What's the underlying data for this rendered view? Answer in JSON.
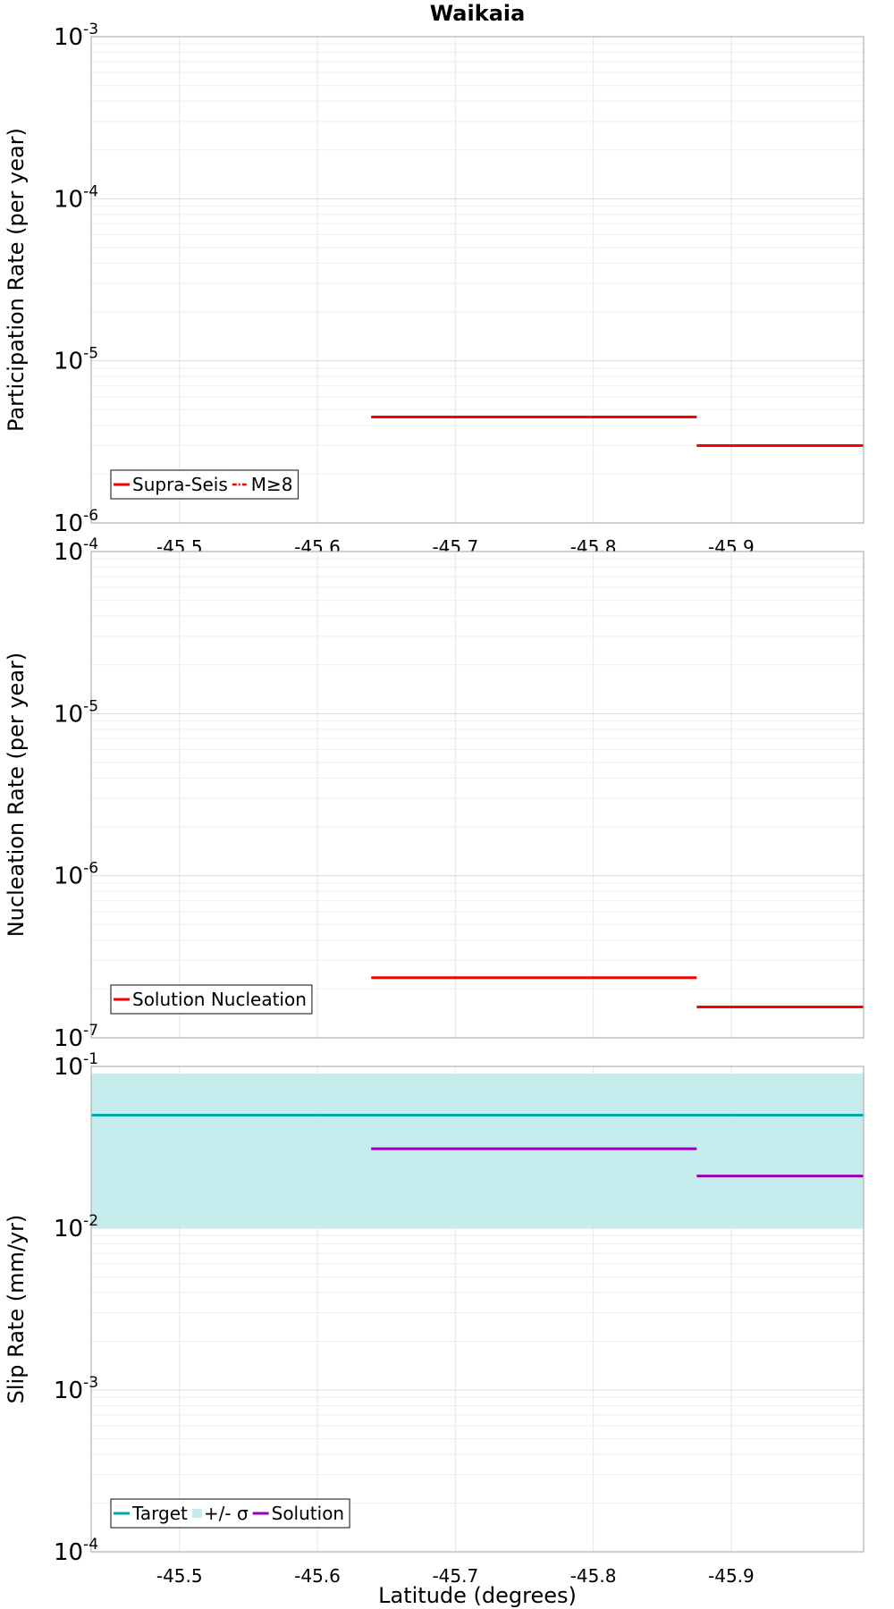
{
  "chart_data": [
    {
      "type": "line",
      "title": "Waikaia",
      "xlabel": "",
      "ylabel": "Participation Rate (per year)",
      "x_tick_labels": [
        "-45.5",
        "-45.6",
        "-45.7",
        "-45.8",
        "-45.9"
      ],
      "x_ticks": [
        -45.5,
        -45.6,
        -45.7,
        -45.8,
        -45.9
      ],
      "xlim": [
        -45.436,
        -45.996
      ],
      "yscale": "log",
      "ylim": [
        1e-06,
        0.001
      ],
      "y_tick_labels": [
        {
          "value": 1e-06,
          "base": "10",
          "exp": "-6"
        },
        {
          "value": 1e-05,
          "base": "10",
          "exp": "-5"
        },
        {
          "value": 0.0001,
          "base": "10",
          "exp": "-4"
        },
        {
          "value": 0.001,
          "base": "10",
          "exp": "-3"
        }
      ],
      "grid": true,
      "legend_position": "bottom-left",
      "legend": [
        {
          "label": "Supra-Seis",
          "style": "solid",
          "color": "#ff0000"
        },
        {
          "label": "M≥8",
          "style": "dashdot",
          "color": "#ff0000"
        }
      ],
      "series": [
        {
          "name": "Supra-Seis",
          "color": "#ff0000",
          "style": "solid",
          "segments": [
            {
              "x": [
                -45.639,
                -45.875
              ],
              "y": 4.5e-06
            },
            {
              "x": [
                -45.875,
                -45.996
              ],
              "y": 3e-06
            }
          ]
        },
        {
          "name": "M≥8",
          "color": "#ff0000",
          "style": "dashdot",
          "segments": [
            {
              "x": [
                -45.639,
                -45.875
              ],
              "y": 4.5e-06
            },
            {
              "x": [
                -45.875,
                -45.996
              ],
              "y": 3e-06
            }
          ]
        }
      ]
    },
    {
      "type": "line",
      "title": "",
      "xlabel": "",
      "ylabel": "Nucleation Rate (per year)",
      "x_tick_labels": [],
      "x_ticks": [
        -45.5,
        -45.6,
        -45.7,
        -45.8,
        -45.9
      ],
      "xlim": [
        -45.436,
        -45.996
      ],
      "yscale": "log",
      "ylim": [
        1e-07,
        0.0001
      ],
      "y_tick_labels": [
        {
          "value": 1e-07,
          "base": "10",
          "exp": "-7"
        },
        {
          "value": 1e-06,
          "base": "10",
          "exp": "-6"
        },
        {
          "value": 1e-05,
          "base": "10",
          "exp": "-5"
        },
        {
          "value": 0.0001,
          "base": "10",
          "exp": "-4"
        }
      ],
      "grid": true,
      "legend_position": "bottom-left",
      "legend": [
        {
          "label": "Solution Nucleation",
          "style": "solid",
          "color": "#ff0000"
        }
      ],
      "series": [
        {
          "name": "Solution Nucleation",
          "color": "#ff0000",
          "style": "solid",
          "segments": [
            {
              "x": [
                -45.639,
                -45.875
              ],
              "y": 2.35e-07
            },
            {
              "x": [
                -45.875,
                -45.996
              ],
              "y": 1.55e-07
            }
          ]
        }
      ]
    },
    {
      "type": "line",
      "title": "",
      "xlabel": "Latitude (degrees)",
      "ylabel": "Slip Rate (mm/yr)",
      "x_tick_labels": [
        "-45.5",
        "-45.6",
        "-45.7",
        "-45.8",
        "-45.9"
      ],
      "x_ticks": [
        -45.5,
        -45.6,
        -45.7,
        -45.8,
        -45.9
      ],
      "xlim": [
        -45.436,
        -45.996
      ],
      "yscale": "log",
      "ylim": [
        0.0001,
        0.1
      ],
      "y_tick_labels": [
        {
          "value": 0.0001,
          "base": "10",
          "exp": "-4"
        },
        {
          "value": 0.001,
          "base": "10",
          "exp": "-3"
        },
        {
          "value": 0.01,
          "base": "10",
          "exp": "-2"
        },
        {
          "value": 0.1,
          "base": "10",
          "exp": "-1"
        }
      ],
      "grid": true,
      "legend_position": "bottom-left",
      "legend": [
        {
          "label": "Target",
          "style": "solid",
          "color": "#00aaaa"
        },
        {
          "label": "+/- σ",
          "style": "band",
          "color": "#c2ecec"
        },
        {
          "label": "Solution",
          "style": "solid",
          "color": "#9900bb"
        }
      ],
      "band": {
        "name": "+/- σ",
        "color": "#c2ecec",
        "x": [
          -45.436,
          -45.996
        ],
        "lower": 0.01,
        "upper": 0.09
      },
      "series": [
        {
          "name": "Target",
          "color": "#00aaaa",
          "style": "solid",
          "segments": [
            {
              "x": [
                -45.436,
                -45.996
              ],
              "y": 0.05
            }
          ]
        },
        {
          "name": "Solution",
          "color": "#9900bb",
          "style": "solid",
          "segments": [
            {
              "x": [
                -45.639,
                -45.875
              ],
              "y": 0.031
            },
            {
              "x": [
                -45.875,
                -45.996
              ],
              "y": 0.021
            }
          ]
        }
      ]
    }
  ]
}
